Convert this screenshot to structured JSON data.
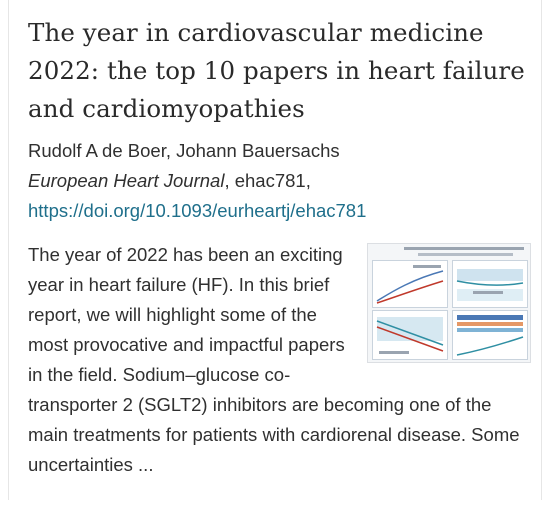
{
  "article": {
    "title": "The year in cardiovascular medicine 2022: the top 10 papers in heart failure and cardiomyopathies",
    "authors": "Rudolf A de Boer, Johann Bauersachs",
    "journal": "European Heart Journal",
    "article_id": ", ehac781,",
    "doi": "https://doi.org/10.1093/eurheartj/ehac781",
    "abstract": "The year of 2022 has been an exciting year in heart failure (HF). In this brief report, we will highlight some of the most provocative and impactful papers in the field. Sodium–glucose co-transporter 2 (SGLT2) inhibitors are becoming one of the main treatments for patients with cardiorenal disease. Some uncertainties ..."
  },
  "thumbnail": {
    "icon": "graphical-abstract-thumbnail",
    "colors": {
      "teal": "#2f8fa3",
      "red": "#c0392b",
      "blue": "#4a78b5",
      "light_blue": "#cfe3ef"
    }
  }
}
